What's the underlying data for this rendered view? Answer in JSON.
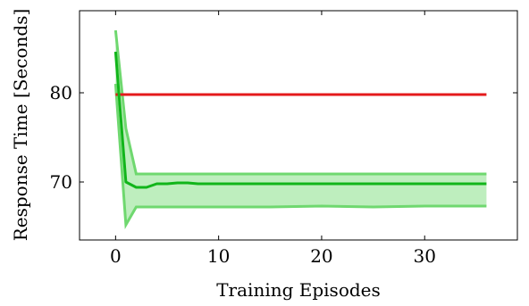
{
  "chart_data": {
    "type": "line",
    "title": "",
    "xlabel": "Training Episodes",
    "ylabel": "Response Time [Seconds]",
    "xlim": [
      -3.5,
      39
    ],
    "ylim": [
      63.5,
      89.2
    ],
    "grid": false,
    "legend": "none",
    "x_ticks": [
      0,
      10,
      20,
      30
    ],
    "x_tick_labels": [
      "0",
      "10",
      "20",
      "30"
    ],
    "y_ticks": [
      70,
      80
    ],
    "y_tick_labels": [
      "70",
      "80"
    ],
    "series": [
      {
        "color": "#e41a1c",
        "x": [
          0,
          36
        ],
        "y": [
          79.8,
          79.8
        ]
      },
      {
        "color": "#11b51a",
        "x": [
          0,
          1,
          2,
          3,
          4,
          5,
          6,
          7,
          8,
          10,
          15,
          20,
          25,
          30,
          36
        ],
        "y": [
          84.6,
          70.0,
          69.4,
          69.4,
          69.8,
          69.8,
          69.9,
          69.9,
          69.8,
          69.8,
          69.8,
          69.8,
          69.8,
          69.8,
          69.8
        ],
        "band_upper": [
          87.0,
          76.0,
          70.9,
          70.9,
          70.9,
          70.9,
          70.9,
          70.9,
          70.9,
          70.9,
          70.9,
          70.9,
          70.9,
          70.9,
          70.9
        ],
        "band_lower": [
          81.0,
          65.2,
          67.2,
          67.2,
          67.2,
          67.2,
          67.2,
          67.2,
          67.2,
          67.2,
          67.2,
          67.3,
          67.2,
          67.3,
          67.3
        ],
        "band_color": "#9be59b"
      }
    ]
  }
}
